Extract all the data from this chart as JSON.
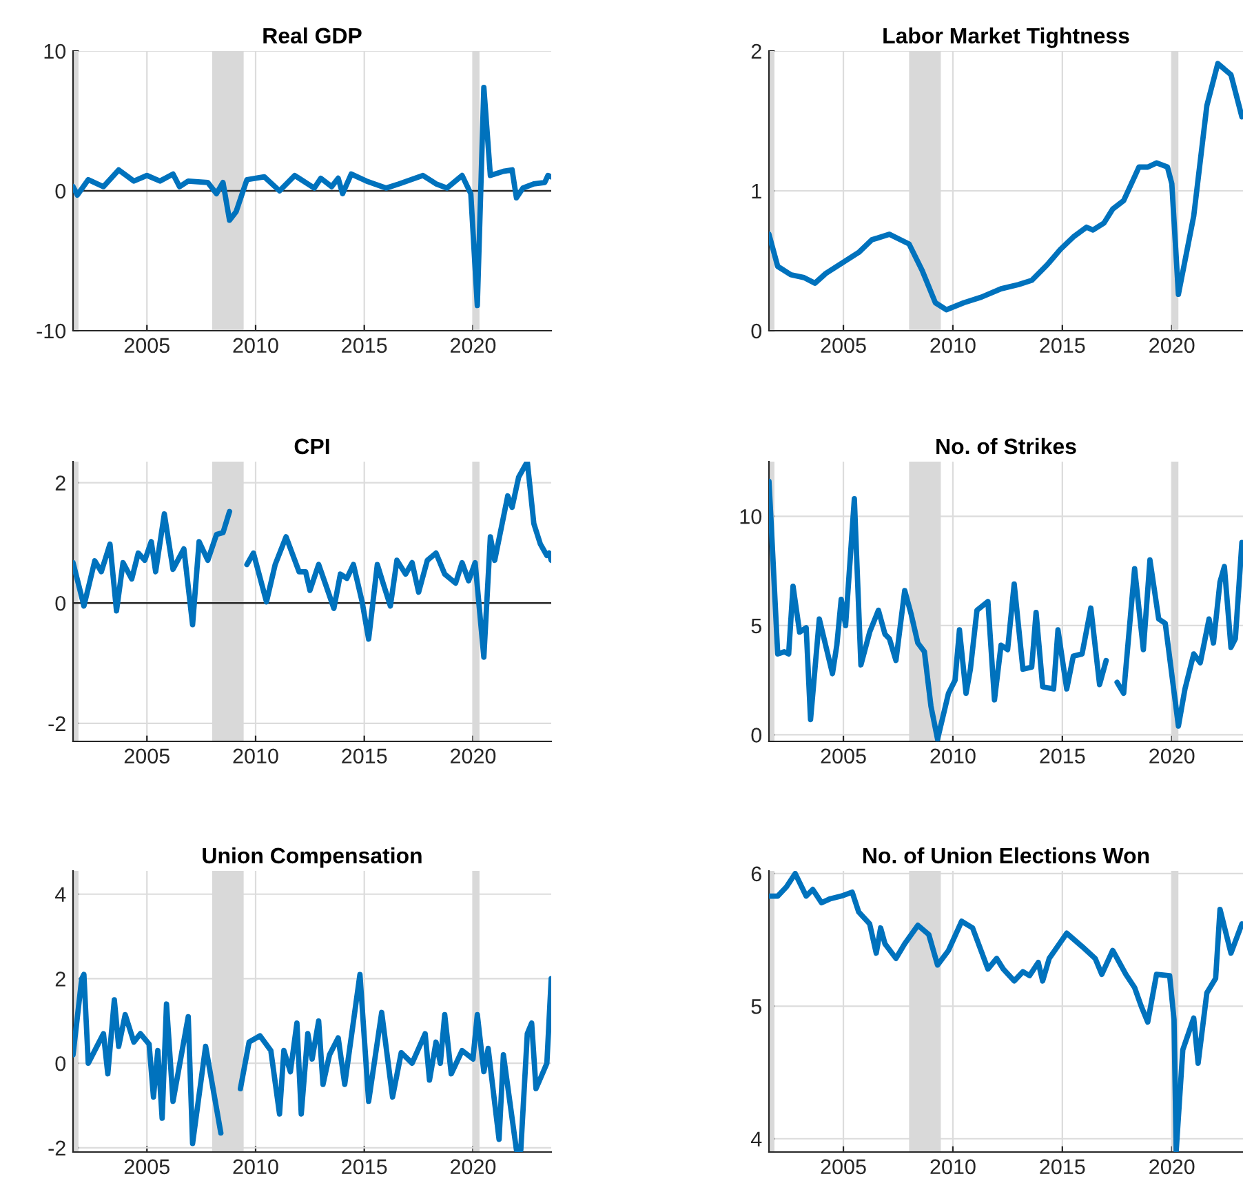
{
  "chart_data": [
    {
      "type": "line",
      "title": "Real GDP",
      "xlim": [
        2001.6,
        2023.6
      ],
      "xticks": [
        2005,
        2010,
        2015,
        2020
      ],
      "ylim": [
        -10,
        10
      ],
      "yticks": [
        -10,
        0,
        10
      ],
      "grid": true,
      "line_style": "solid",
      "ref_lines": [
        {
          "axis": "y",
          "value": 0,
          "color": "#262626"
        }
      ],
      "bands": [
        {
          "axis": "x",
          "from": 2001.6,
          "to": 2001.85,
          "color": "#d9d9d9"
        },
        {
          "axis": "x",
          "from": 2008.0,
          "to": 2009.45,
          "color": "#d9d9d9"
        },
        {
          "axis": "x",
          "from": 2020.0,
          "to": 2020.3,
          "color": "#d9d9d9"
        }
      ],
      "series": [
        {
          "color": "#0072bd",
          "x": [
            2001.6,
            2001.8,
            2002.3,
            2003.0,
            2003.7,
            2004.4,
            2005.0,
            2005.6,
            2006.2,
            2006.5,
            2006.9,
            2007.8,
            2008.2,
            2008.5,
            2008.8,
            2009.1,
            2009.6,
            2010.4,
            2011.1,
            2011.8,
            2012.7,
            2013.0,
            2013.5,
            2013.8,
            2014.0,
            2014.4,
            2015.1,
            2016.0,
            2016.6,
            2017.7,
            2018.3,
            2018.8,
            2019.5,
            2019.9,
            2020.2,
            2020.5,
            2020.8,
            2021.4,
            2021.8,
            2022.0,
            2022.3,
            2022.8,
            2023.3,
            2023.45,
            2023.6
          ],
          "values": [
            0.3,
            -0.3,
            0.8,
            0.3,
            1.5,
            0.7,
            1.1,
            0.7,
            1.2,
            0.3,
            0.7,
            0.6,
            -0.2,
            0.6,
            -2.1,
            -1.5,
            0.8,
            1.0,
            0.0,
            1.1,
            0.2,
            0.9,
            0.3,
            0.9,
            -0.2,
            1.2,
            0.7,
            0.2,
            0.5,
            1.1,
            0.5,
            0.2,
            1.1,
            -0.2,
            -8.2,
            7.4,
            1.1,
            1.4,
            1.5,
            -0.5,
            0.2,
            0.5,
            0.6,
            1.1,
            1.0
          ]
        }
      ]
    },
    {
      "type": "line",
      "title": "Labor Market Tightness",
      "xlim": [
        2001.6,
        2023.25
      ],
      "xticks": [
        2005,
        2010,
        2015,
        2020
      ],
      "ylim": [
        0,
        2
      ],
      "yticks": [
        0,
        1,
        2
      ],
      "grid": true,
      "line_style": "solid",
      "bands": [
        {
          "axis": "x",
          "from": 2001.6,
          "to": 2001.85,
          "color": "#d9d9d9"
        },
        {
          "axis": "x",
          "from": 2008.0,
          "to": 2009.45,
          "color": "#d9d9d9"
        },
        {
          "axis": "x",
          "from": 2020.0,
          "to": 2020.3,
          "color": "#d9d9d9"
        }
      ],
      "series": [
        {
          "color": "#0072bd",
          "x": [
            2001.6,
            2002.0,
            2002.6,
            2003.2,
            2003.7,
            2004.2,
            2005.0,
            2005.7,
            2006.3,
            2007.1,
            2008.0,
            2008.6,
            2009.2,
            2009.7,
            2010.5,
            2011.3,
            2012.2,
            2013.0,
            2013.6,
            2014.3,
            2014.9,
            2015.5,
            2016.1,
            2016.4,
            2016.9,
            2017.3,
            2017.8,
            2018.5,
            2018.9,
            2019.3,
            2019.8,
            2020.0,
            2020.3,
            2021.0,
            2021.6,
            2022.1,
            2022.7,
            2023.2
          ],
          "values": [
            0.69,
            0.46,
            0.4,
            0.38,
            0.34,
            0.41,
            0.49,
            0.56,
            0.65,
            0.69,
            0.62,
            0.43,
            0.2,
            0.15,
            0.2,
            0.24,
            0.3,
            0.33,
            0.36,
            0.47,
            0.58,
            0.67,
            0.74,
            0.72,
            0.77,
            0.87,
            0.93,
            1.17,
            1.17,
            1.2,
            1.17,
            1.05,
            0.26,
            0.82,
            1.61,
            1.91,
            1.83,
            1.53
          ]
        }
      ]
    },
    {
      "type": "line",
      "title": "CPI",
      "xlim": [
        2001.6,
        2023.6
      ],
      "xticks": [
        2005,
        2010,
        2015,
        2020
      ],
      "ylim": [
        -2.3,
        2.35
      ],
      "yticks": [
        -2,
        0,
        2
      ],
      "grid": true,
      "line_style": "solid",
      "ref_lines": [
        {
          "axis": "y",
          "value": 0,
          "color": "#262626"
        }
      ],
      "bands": [
        {
          "axis": "x",
          "from": 2001.6,
          "to": 2001.85,
          "color": "#d9d9d9"
        },
        {
          "axis": "x",
          "from": 2008.0,
          "to": 2009.45,
          "color": "#d9d9d9"
        },
        {
          "axis": "x",
          "from": 2020.0,
          "to": 2020.3,
          "color": "#d9d9d9"
        }
      ],
      "series": [
        {
          "color": "#0072bd",
          "x": [
            2001.6,
            2002.0,
            2002.1,
            2002.6,
            2002.9,
            2003.3,
            2003.6,
            2003.9,
            2004.3,
            2004.6,
            2004.9,
            2005.2,
            2005.4,
            2005.8,
            2006.2,
            2006.7,
            2007.1,
            2007.4,
            2007.8,
            2008.2,
            2008.5,
            2008.8,
            2009.1,
            2009.3,
            2009.6,
            2009.9,
            2010.5,
            2010.9,
            2011.4,
            2012.0,
            2012.3,
            2012.5,
            2012.9,
            2013.2,
            2013.6,
            2013.9,
            2014.2,
            2014.5,
            2014.9,
            2015.2,
            2015.6,
            2015.9,
            2016.2,
            2016.5,
            2016.9,
            2017.2,
            2017.5,
            2017.9,
            2018.3,
            2018.7,
            2019.2,
            2019.5,
            2019.8,
            2020.1,
            2020.5,
            2020.8,
            2021.0,
            2021.6,
            2021.8,
            2022.1,
            2022.5,
            2022.8,
            2023.1,
            2023.4,
            2023.5,
            2023.6
          ],
          "values": [
            0.67,
            0.1,
            -0.05,
            0.7,
            0.52,
            0.98,
            -0.13,
            0.67,
            0.4,
            0.83,
            0.71,
            1.02,
            0.52,
            1.48,
            0.56,
            0.9,
            -0.36,
            1.02,
            0.71,
            1.14,
            1.17,
            1.52,
            null,
            null,
            0.64,
            0.83,
            0.02,
            0.64,
            1.1,
            0.52,
            0.52,
            0.21,
            0.64,
            0.33,
            -0.09,
            0.48,
            0.41,
            0.64,
            0.02,
            -0.6,
            0.64,
            0.29,
            -0.05,
            0.71,
            0.48,
            0.67,
            0.18,
            0.71,
            0.83,
            0.48,
            0.33,
            0.67,
            0.37,
            0.67,
            -0.9,
            1.1,
            0.71,
            1.78,
            1.59,
            2.09,
            2.35,
            1.32,
            0.98,
            0.79,
            0.83,
            0.71
          ]
        }
      ]
    },
    {
      "type": "line",
      "title": "No. of Strikes",
      "xlim": [
        2001.6,
        2023.25
      ],
      "xticks": [
        2005,
        2010,
        2015,
        2020
      ],
      "ylim": [
        -0.3,
        12.5
      ],
      "yticks": [
        0,
        5,
        10
      ],
      "grid": true,
      "line_style": "solid",
      "bands": [
        {
          "axis": "x",
          "from": 2001.6,
          "to": 2001.85,
          "color": "#d9d9d9"
        },
        {
          "axis": "x",
          "from": 2008.0,
          "to": 2009.45,
          "color": "#d9d9d9"
        },
        {
          "axis": "x",
          "from": 2020.0,
          "to": 2020.3,
          "color": "#d9d9d9"
        }
      ],
      "series": [
        {
          "color": "#0072bd",
          "x": [
            2001.6,
            2001.7,
            2002.0,
            2002.3,
            2002.5,
            2002.7,
            2003.0,
            2003.3,
            2003.5,
            2003.9,
            2004.5,
            2004.7,
            2004.9,
            2005.1,
            2005.5,
            2005.8,
            2006.2,
            2006.6,
            2006.9,
            2007.1,
            2007.4,
            2007.8,
            2008.1,
            2008.4,
            2008.7,
            2009.0,
            2009.3,
            2009.8,
            2010.1,
            2010.3,
            2010.6,
            2010.8,
            2011.1,
            2011.6,
            2011.9,
            2012.2,
            2012.5,
            2012.8,
            2013.2,
            2013.6,
            2013.8,
            2014.1,
            2014.6,
            2014.8,
            2015.2,
            2015.5,
            2015.9,
            2016.3,
            2016.7,
            2017.0,
            2017.3,
            2017.5,
            2017.8,
            2018.3,
            2018.7,
            2019.0,
            2019.4,
            2019.7,
            2020.3,
            2020.6,
            2021.0,
            2021.3,
            2021.7,
            2021.9,
            2022.2,
            2022.4,
            2022.7,
            2022.9,
            2023.2
          ],
          "values": [
            11.6,
            9.7,
            3.7,
            3.8,
            3.7,
            6.8,
            4.7,
            4.9,
            0.7,
            5.3,
            2.8,
            4.1,
            6.2,
            5.0,
            10.8,
            3.2,
            4.7,
            5.7,
            4.6,
            4.4,
            3.4,
            6.6,
            5.5,
            4.2,
            3.8,
            1.3,
            -0.2,
            1.9,
            2.5,
            4.8,
            1.9,
            3.0,
            5.7,
            6.1,
            1.6,
            4.1,
            3.9,
            6.9,
            3.0,
            3.1,
            5.6,
            2.2,
            2.1,
            4.8,
            2.1,
            3.6,
            3.7,
            5.8,
            2.3,
            3.4,
            null,
            2.4,
            1.9,
            7.6,
            3.9,
            8.0,
            5.3,
            5.1,
            0.4,
            2.1,
            3.7,
            3.3,
            5.3,
            4.2,
            7.0,
            7.7,
            4.0,
            4.4,
            8.8
          ]
        }
      ]
    },
    {
      "type": "line",
      "title": "Union Compensation",
      "xlim": [
        2001.6,
        2023.6
      ],
      "xticks": [
        2005,
        2010,
        2015,
        2020
      ],
      "ylim": [
        -2.1,
        4.55
      ],
      "yticks": [
        -2,
        0,
        2,
        4
      ],
      "grid": true,
      "line_style": "solid",
      "bands": [
        {
          "axis": "x",
          "from": 2001.6,
          "to": 2001.85,
          "color": "#d9d9d9"
        },
        {
          "axis": "x",
          "from": 2008.0,
          "to": 2009.45,
          "color": "#d9d9d9"
        },
        {
          "axis": "x",
          "from": 2020.0,
          "to": 2020.3,
          "color": "#d9d9d9"
        }
      ],
      "series": [
        {
          "color": "#0072bd",
          "x": [
            2001.6,
            2002.0,
            2002.1,
            2002.3,
            2002.7,
            2003.0,
            2003.2,
            2003.5,
            2003.7,
            2004.0,
            2004.4,
            2004.7,
            2005.1,
            2005.3,
            2005.5,
            2005.7,
            2005.9,
            2006.2,
            2006.9,
            2007.1,
            2007.7,
            2008.4,
            2008.9,
            2009.3,
            2009.7,
            2010.2,
            2010.7,
            2011.1,
            2011.3,
            2011.6,
            2011.9,
            2012.1,
            2012.4,
            2012.6,
            2012.9,
            2013.1,
            2013.4,
            2013.8,
            2014.1,
            2014.8,
            2015.2,
            2015.8,
            2016.3,
            2016.7,
            2017.2,
            2017.8,
            2018.0,
            2018.3,
            2018.5,
            2018.7,
            2019.0,
            2019.5,
            2020.0,
            2020.2,
            2020.5,
            2020.7,
            2021.2,
            2021.4,
            2022.0,
            2022.2,
            2022.5,
            2022.7,
            2022.9,
            2023.4,
            2023.6
          ],
          "values": [
            0.2,
            2.0,
            2.1,
            0.0,
            0.4,
            0.7,
            -0.25,
            1.5,
            0.4,
            1.15,
            0.5,
            0.7,
            0.45,
            -0.8,
            0.3,
            -1.3,
            1.4,
            -0.9,
            1.1,
            -1.9,
            0.4,
            -1.65,
            null,
            -0.6,
            0.5,
            0.65,
            0.3,
            -1.2,
            0.3,
            -0.2,
            0.95,
            -1.2,
            0.7,
            0.1,
            1.0,
            -0.5,
            0.2,
            0.6,
            -0.5,
            2.1,
            -0.9,
            1.2,
            -0.8,
            0.25,
            0.0,
            0.7,
            -0.4,
            0.5,
            0.0,
            1.15,
            -0.25,
            0.3,
            0.1,
            1.15,
            -0.2,
            0.35,
            -1.8,
            0.2,
            -2.05,
            -2.05,
            0.7,
            0.95,
            -0.6,
            0.0,
            2.0
          ]
        }
      ]
    },
    {
      "type": "line",
      "title": "No. of Union Elections Won",
      "xlim": [
        2001.6,
        2023.25
      ],
      "xticks": [
        2005,
        2010,
        2015,
        2020
      ],
      "ylim": [
        3.9,
        6.02
      ],
      "yticks": [
        4,
        5,
        6
      ],
      "grid": true,
      "line_style": "solid",
      "bands": [
        {
          "axis": "x",
          "from": 2001.6,
          "to": 2001.85,
          "color": "#d9d9d9"
        },
        {
          "axis": "x",
          "from": 2008.0,
          "to": 2009.45,
          "color": "#d9d9d9"
        },
        {
          "axis": "x",
          "from": 2020.0,
          "to": 2020.3,
          "color": "#d9d9d9"
        }
      ],
      "series": [
        {
          "color": "#0072bd",
          "x": [
            2001.6,
            2002.0,
            2002.4,
            2002.8,
            2003.3,
            2003.6,
            2004.0,
            2004.4,
            2004.9,
            2005.4,
            2005.7,
            2006.2,
            2006.5,
            2006.7,
            2006.9,
            2007.4,
            2007.8,
            2008.4,
            2008.9,
            2009.3,
            2009.8,
            2010.4,
            2010.9,
            2011.6,
            2012.0,
            2012.3,
            2012.8,
            2013.2,
            2013.5,
            2013.9,
            2014.1,
            2014.4,
            2015.2,
            2015.9,
            2016.5,
            2016.8,
            2017.3,
            2017.9,
            2018.3,
            2018.6,
            2018.9,
            2019.3,
            2019.9,
            2020.1,
            2020.2,
            2020.5,
            2021.0,
            2021.2,
            2021.6,
            2022.0,
            2022.2,
            2022.7,
            2023.2
          ],
          "values": [
            5.83,
            5.83,
            5.9,
            6.0,
            5.83,
            5.88,
            5.78,
            5.81,
            5.83,
            5.86,
            5.71,
            5.62,
            5.4,
            5.59,
            5.47,
            5.36,
            5.47,
            5.61,
            5.54,
            5.31,
            5.42,
            5.64,
            5.59,
            5.28,
            5.36,
            5.28,
            5.19,
            5.26,
            5.23,
            5.33,
            5.19,
            5.36,
            5.55,
            5.45,
            5.36,
            5.24,
            5.42,
            5.24,
            5.14,
            5.0,
            4.88,
            5.24,
            5.23,
            4.9,
            3.91,
            4.67,
            4.91,
            4.57,
            5.1,
            5.21,
            5.73,
            5.4,
            5.62
          ]
        }
      ]
    }
  ]
}
